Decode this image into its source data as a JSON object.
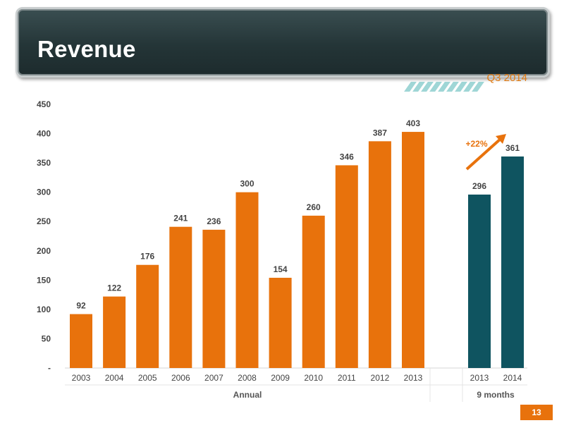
{
  "slide": {
    "title": "Revenue",
    "subtitle": "Q3 2014",
    "page_number": "13"
  },
  "colors": {
    "annual_bar": "#e8720c",
    "nine_month_bar": "#0f5460",
    "growth_arrow": "#e8720c"
  },
  "chart_data": {
    "type": "bar",
    "ylim": [
      0,
      450
    ],
    "yticks": [
      "-",
      "50",
      "100",
      "150",
      "200",
      "250",
      "300",
      "350",
      "400",
      "450"
    ],
    "grid": false,
    "groups": [
      {
        "label": "Annual",
        "categories": [
          "2003",
          "2004",
          "2005",
          "2006",
          "2007",
          "2008",
          "2009",
          "2010",
          "2011",
          "2012",
          "2013"
        ],
        "values": [
          92,
          122,
          176,
          241,
          236,
          300,
          154,
          260,
          346,
          387,
          403
        ]
      },
      {
        "label": "9 months",
        "categories": [
          "2013",
          "2014"
        ],
        "values": [
          296,
          361
        ]
      }
    ],
    "annotations": [
      {
        "text": "+22%",
        "type": "growth-arrow"
      }
    ]
  }
}
